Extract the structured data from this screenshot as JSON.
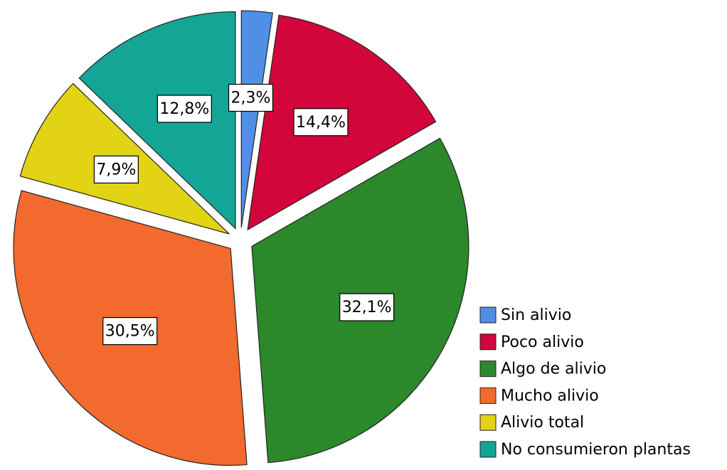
{
  "chart_data": {
    "type": "pie",
    "categories": [
      "Sin alivio",
      "Poco alivio",
      "Algo de alivio",
      "Mucho alivio",
      "Alivio total",
      "No consumieron plantas"
    ],
    "values": [
      2.3,
      14.4,
      32.1,
      30.5,
      7.9,
      12.8
    ],
    "value_labels": [
      "2,3%",
      "14,4%",
      "32,1%",
      "30,5%",
      "7,9%",
      "12,8%"
    ],
    "colors": [
      "#4f8fe6",
      "#d2063a",
      "#2b882b",
      "#f26a2e",
      "#e2d314",
      "#13a595"
    ],
    "legend": "right"
  }
}
